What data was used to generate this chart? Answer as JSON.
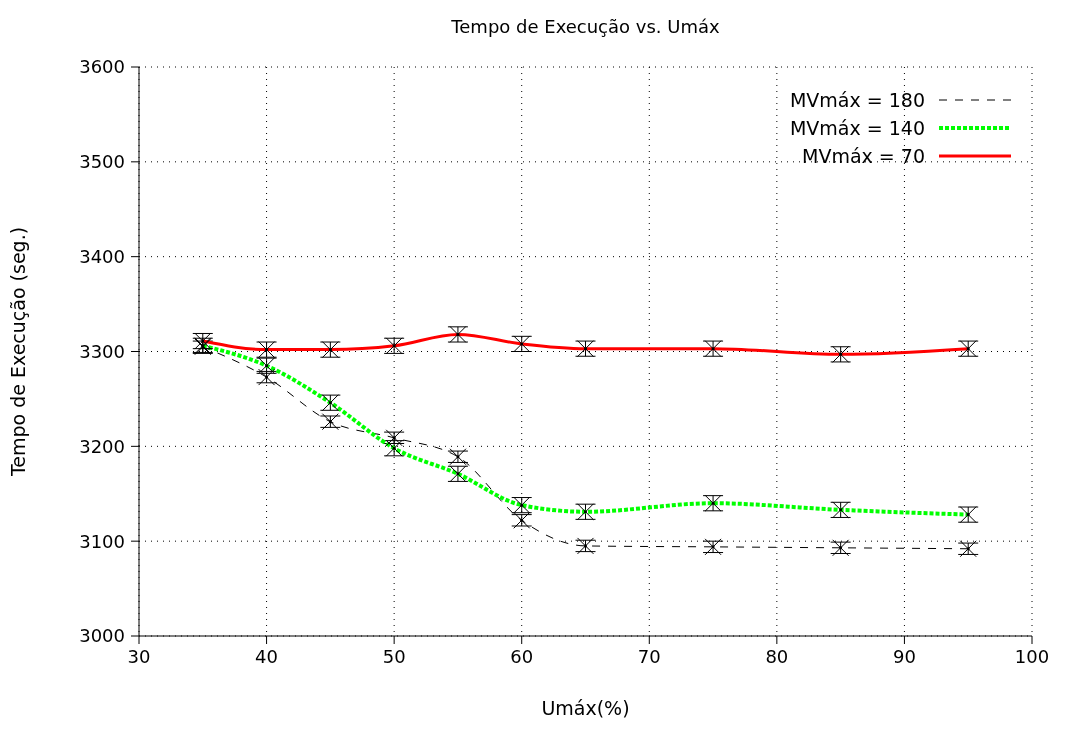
{
  "chart_data": {
    "type": "line",
    "title": "Tempo de Execução vs. Umáx",
    "xlabel": "Umáx(%)",
    "ylabel": "Tempo de Execução (seg.)",
    "x": [
      35,
      40,
      45,
      50,
      55,
      60,
      65,
      75,
      85,
      95
    ],
    "series": [
      {
        "name": "MVmáx = 180",
        "color": "#000000",
        "line_style": "dashed",
        "marker": "cross",
        "values": [
          3305,
          3273,
          3226,
          3209,
          3189,
          3122,
          3095,
          3094,
          3093,
          3092
        ],
        "errors": [
          6,
          6,
          6,
          6,
          6,
          6,
          6,
          6,
          6,
          6
        ]
      },
      {
        "name": "MVmáx = 140",
        "color": "#00ff00",
        "line_style": "dotted",
        "marker": "cross",
        "values": [
          3306,
          3285,
          3246,
          3198,
          3171,
          3138,
          3131,
          3140,
          3133,
          3128
        ],
        "errors": [
          8,
          8,
          8,
          8,
          8,
          8,
          8,
          8,
          8,
          8
        ]
      },
      {
        "name": "MVmáx = 70",
        "color": "#ff0000",
        "line_style": "solid",
        "marker": "cross",
        "values": [
          3311,
          3302,
          3302,
          3306,
          3318,
          3308,
          3303,
          3303,
          3297,
          3303
        ],
        "errors": [
          8,
          8,
          8,
          8,
          8,
          8,
          8,
          8,
          8,
          8
        ]
      }
    ],
    "xlim": [
      30,
      100
    ],
    "xticks": [
      30,
      40,
      50,
      60,
      70,
      80,
      90,
      100
    ],
    "ylim": [
      3000,
      3600
    ],
    "yticks": [
      3000,
      3100,
      3200,
      3300,
      3400,
      3500,
      3600
    ],
    "grid": true,
    "legend": "top right"
  }
}
